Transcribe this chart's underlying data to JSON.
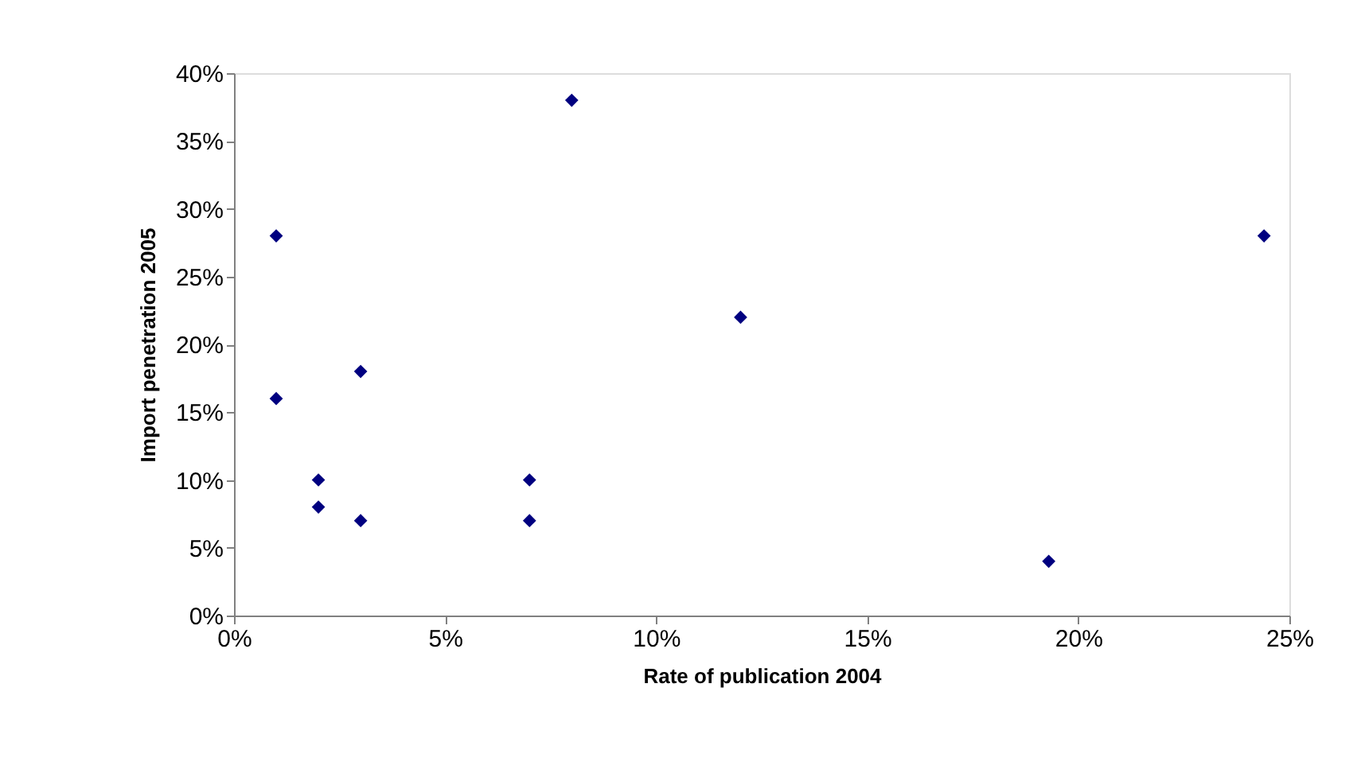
{
  "chart_data": {
    "type": "scatter",
    "xlabel": "Rate of publication 2004",
    "ylabel": "Import penetration 2005",
    "x": [
      1,
      1,
      2,
      2,
      3,
      3,
      7,
      7,
      8,
      12,
      19.3,
      24.4
    ],
    "series": [
      {
        "color": "#000080",
        "values": [
          28,
          16,
          10,
          8,
          18,
          7,
          10,
          7,
          38,
          22,
          4,
          28
        ]
      }
    ],
    "marker": "diamond",
    "grid": false,
    "xlim": [
      0,
      25
    ],
    "ylim": [
      0,
      40
    ],
    "xticks": [
      {
        "value": 0,
        "label": "0%"
      },
      {
        "value": 5,
        "label": "5%"
      },
      {
        "value": 10,
        "label": "10%"
      },
      {
        "value": 15,
        "label": "15%"
      },
      {
        "value": 20,
        "label": "20%"
      },
      {
        "value": 25,
        "label": "25%"
      }
    ],
    "yticks": [
      {
        "value": 0,
        "label": "0%"
      },
      {
        "value": 5,
        "label": "5%"
      },
      {
        "value": 10,
        "label": "10%"
      },
      {
        "value": 15,
        "label": "15%"
      },
      {
        "value": 20,
        "label": "20%"
      },
      {
        "value": 25,
        "label": "25%"
      },
      {
        "value": 30,
        "label": "30%"
      },
      {
        "value": 35,
        "label": "35%"
      },
      {
        "value": 40,
        "label": "40%"
      }
    ]
  }
}
